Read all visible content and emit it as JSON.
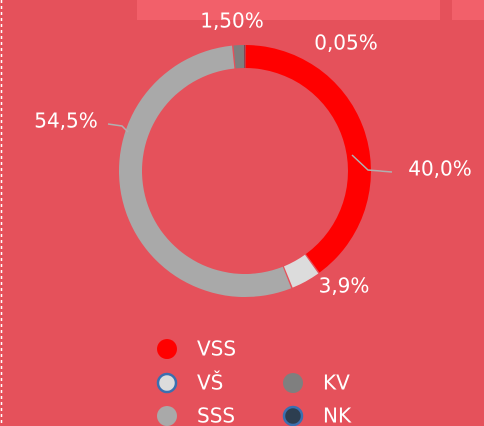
{
  "chart_data": {
    "type": "donut",
    "categories": [
      "VSS",
      "VŠ",
      "SSS",
      "KV",
      "NK"
    ],
    "values": [
      40.0,
      3.9,
      54.5,
      1.5,
      0.05
    ],
    "value_labels": [
      "40,0%",
      "3,9%",
      "54,5%",
      "1,50%",
      "0,05%"
    ],
    "colors": [
      "#ff0000",
      "#dcdcdc",
      "#a9a9a9",
      "#7f7f7f",
      "#2d3e50"
    ]
  }
}
